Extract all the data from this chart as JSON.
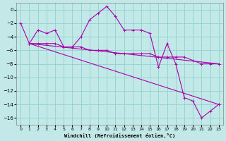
{
  "xlabel": "Windchill (Refroidissement éolien,°C)",
  "bg_color": "#c2e8e8",
  "grid_color": "#98d4d4",
  "line_color": "#aa00aa",
  "xlim": [
    -0.5,
    23.5
  ],
  "ylim": [
    -17,
    1
  ],
  "yticks": [
    0,
    -2,
    -4,
    -6,
    -8,
    -10,
    -12,
    -14,
    -16
  ],
  "xticks": [
    0,
    1,
    2,
    3,
    4,
    5,
    6,
    7,
    8,
    9,
    10,
    11,
    12,
    13,
    14,
    15,
    16,
    17,
    18,
    19,
    20,
    21,
    22,
    23
  ],
  "series1_x": [
    0,
    1,
    2,
    3,
    4,
    5,
    6,
    7,
    8,
    9,
    10,
    11,
    12,
    13,
    14,
    15,
    16,
    17,
    18,
    19,
    20,
    21,
    22,
    23
  ],
  "series1_y": [
    -2,
    -5,
    -3,
    -3.5,
    -3,
    -5.5,
    -5.5,
    -4,
    -1.5,
    -0.5,
    0.5,
    -1,
    -3,
    -3,
    -3,
    -3.5,
    -8.5,
    -5,
    -8,
    -13,
    -13.5,
    -16,
    -15,
    -14
  ],
  "series2_x": [
    1,
    2,
    3,
    4,
    5,
    6,
    7,
    8,
    9,
    10,
    11,
    12,
    13,
    14,
    15,
    16,
    17,
    18,
    19,
    20,
    21,
    22,
    23
  ],
  "series2_y": [
    -5,
    -5,
    -5,
    -5,
    -5.5,
    -5.5,
    -5.5,
    -6,
    -6,
    -6,
    -6.5,
    -6.5,
    -6.5,
    -6.5,
    -6.5,
    -7,
    -7,
    -7,
    -7,
    -7.5,
    -8,
    -8,
    -8
  ],
  "series3_x": [
    1,
    23
  ],
  "series3_y": [
    -5,
    -8
  ],
  "series4_x": [
    1,
    23
  ],
  "series4_y": [
    -5,
    -14
  ]
}
